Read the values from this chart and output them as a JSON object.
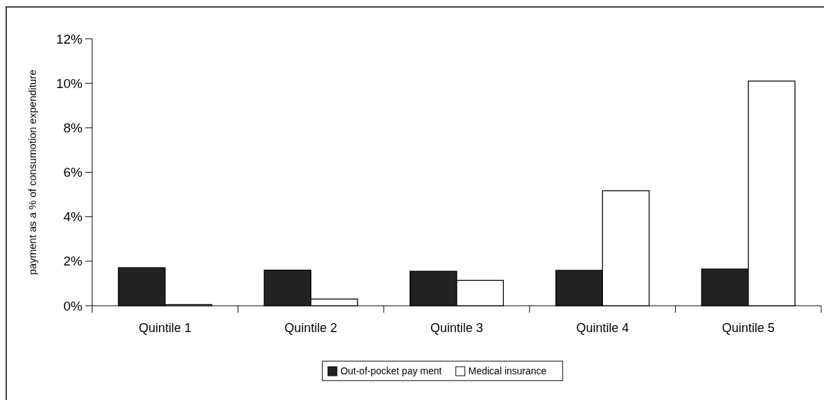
{
  "chart_data": {
    "type": "bar",
    "ylabel": "payment as a % of consumotion expenditure",
    "categories": [
      "Quintile 1",
      "Quintile 2",
      "Quintile 3",
      "Quintile 4",
      "Quintile 5"
    ],
    "series": [
      {
        "name": "Out-of-pocket pay ment",
        "color": "#222222",
        "values": [
          1.71,
          1.6,
          1.55,
          1.59,
          1.65
        ]
      },
      {
        "name": "Medical insurance",
        "color": "#ffffff",
        "values": [
          0.05,
          0.3,
          1.14,
          5.17,
          10.1
        ]
      }
    ],
    "ylim": [
      0,
      12
    ],
    "yticks": [
      {
        "value": 0,
        "label": "0%"
      },
      {
        "value": 2,
        "label": "2%"
      },
      {
        "value": 4,
        "label": "4%"
      },
      {
        "value": 6,
        "label": "6%"
      },
      {
        "value": 8,
        "label": "8%"
      },
      {
        "value": 10,
        "label": "10%"
      },
      {
        "value": 12,
        "label": "12%"
      }
    ],
    "grid": false,
    "legend": "bottom"
  }
}
